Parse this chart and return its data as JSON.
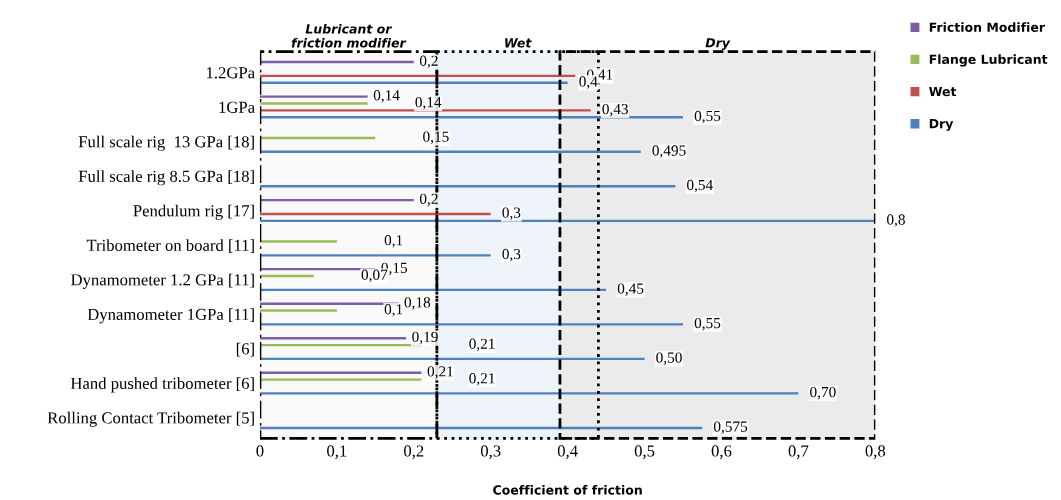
{
  "chart_data": {
    "type": "bar",
    "orientation": "horizontal",
    "categories": [
      "1.2GPa",
      "1GPa",
      "Full scale rig  13 GPa [18]",
      "Full scale rig 8.5 GPa [18]",
      "Pendulum rig [17]",
      "Tribometer on board [11]",
      "Dynamometer 1.2 GPa [11]",
      "Dynamometer 1GPa [11]",
      "[6]",
      "Hand pushed tribometer [6]",
      "Rolling Contact Tribometer [5]"
    ],
    "series": [
      {
        "name": "Friction Modifier",
        "color": "#7b5ea7",
        "values": [
          0.2,
          0.14,
          null,
          null,
          0.2,
          null,
          0.15,
          0.18,
          0.19,
          0.21,
          null
        ],
        "value_labels": [
          "0,2",
          "0,14",
          null,
          null,
          "0,2",
          null,
          "0,15",
          "0,18",
          "0,19",
          "0,21",
          null
        ]
      },
      {
        "name": "Flange Lubricant",
        "color": "#9bbb59",
        "values": [
          null,
          0.14,
          0.15,
          null,
          null,
          0.1,
          0.07,
          0.1,
          0.21,
          0.21,
          null
        ],
        "value_labels": [
          null,
          "0,14",
          "0,15",
          null,
          null,
          "0,1",
          "0,07",
          "0,1",
          "0,21",
          "0,21",
          null
        ]
      },
      {
        "name": "Wet",
        "color": "#c0504d",
        "values": [
          0.41,
          0.43,
          null,
          null,
          0.3,
          null,
          null,
          null,
          null,
          null,
          null
        ],
        "value_labels": [
          "0,41",
          "0,43",
          null,
          null,
          "0,3",
          null,
          null,
          null,
          null,
          null,
          null
        ]
      },
      {
        "name": "Dry",
        "color": "#4f81bd",
        "values": [
          0.4,
          0.55,
          0.495,
          0.54,
          0.8,
          0.3,
          0.45,
          0.55,
          0.5,
          0.7,
          0.575
        ],
        "value_labels": [
          "0,4",
          "0,55",
          "0,495",
          "0,54",
          "0,8",
          "0,3",
          "0,45",
          "0,55",
          "0,50",
          "0,70",
          "0,575"
        ]
      }
    ],
    "xlabel": "Coefficient of friction",
    "xlim": [
      0,
      0.8
    ],
    "xticks": [
      0,
      {
        "value": 0.1,
        "label": "0,1"
      },
      {
        "value": 0.2,
        "label": "0,2"
      },
      {
        "value": 0.3,
        "label": "0,3"
      },
      {
        "value": 0.4,
        "label": "0,4"
      },
      {
        "value": 0.5,
        "label": "0,5"
      },
      {
        "value": 0.6,
        "label": "0,6"
      },
      {
        "value": 0.7,
        "label": "0,7"
      },
      {
        "value": 0.8,
        "label": "0,8"
      }
    ],
    "bands": [
      {
        "axis": "x",
        "from": 0,
        "to": 0.23,
        "label": "Lubricant or\nfriction modifier",
        "color": "#f9f9f9"
      },
      {
        "axis": "x",
        "from": 0.23,
        "to": 0.44,
        "label": "Wet",
        "color": "#eef3fa"
      },
      {
        "axis": "x",
        "from": 0.39,
        "to": 0.8,
        "label": "Dry",
        "color": "#ebebeb"
      }
    ],
    "grid": false,
    "legend": "top right"
  }
}
